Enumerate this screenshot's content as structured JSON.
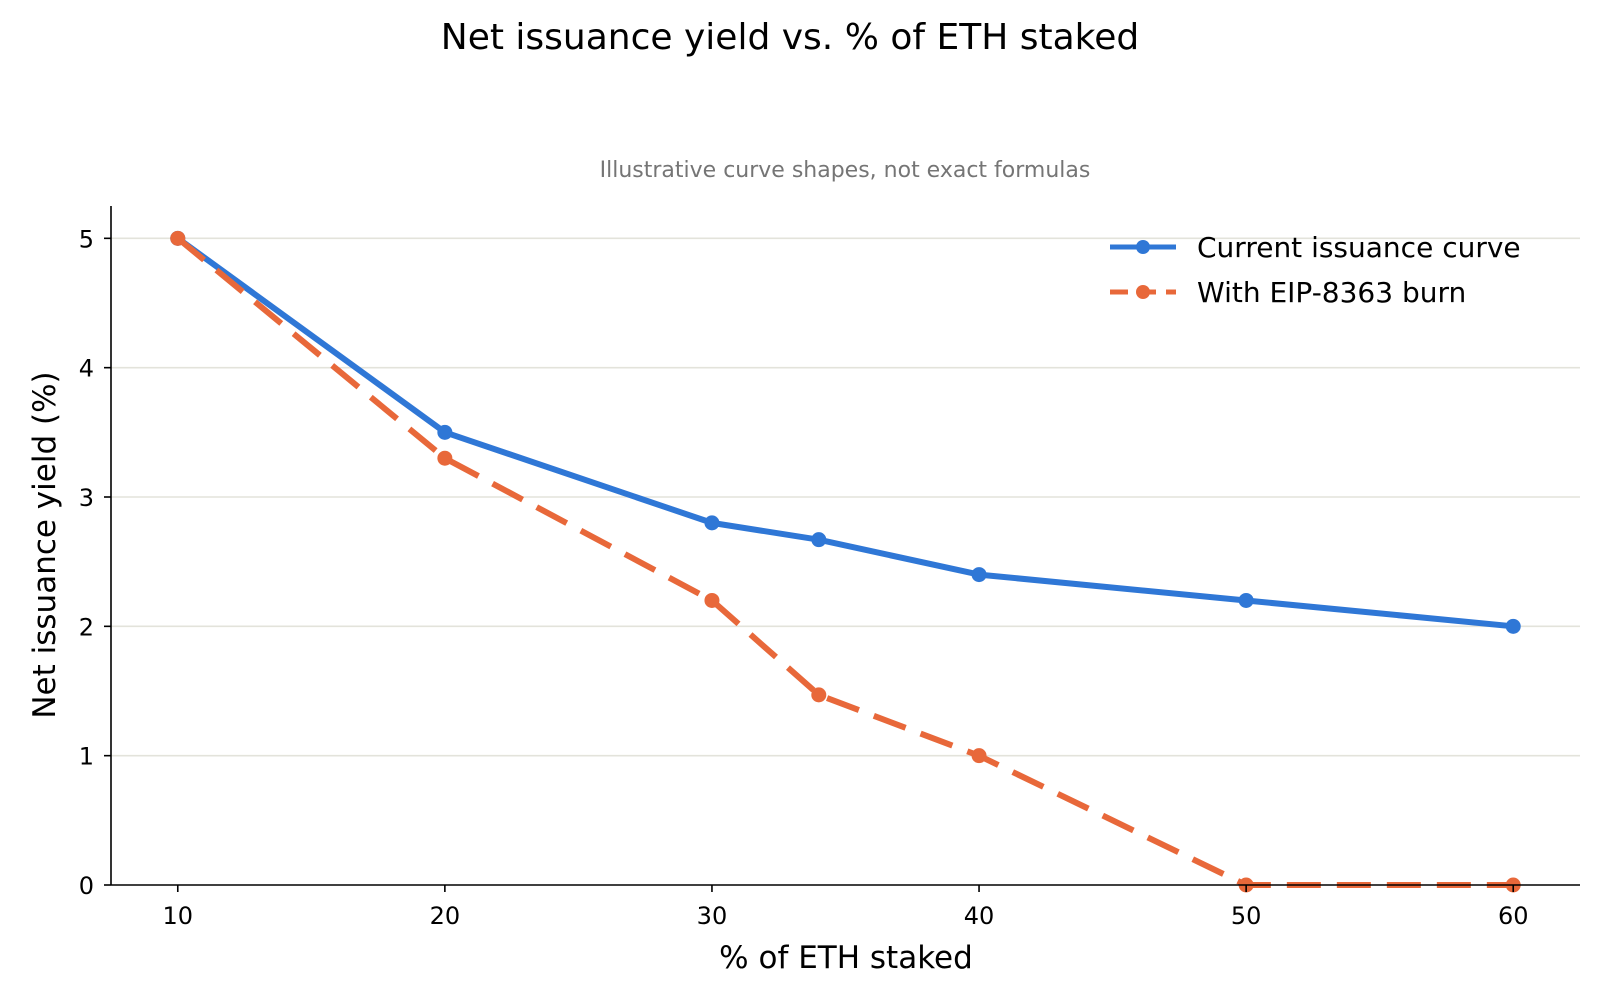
{
  "chart_data": {
    "type": "line",
    "title": "Net issuance yield vs. % of ETH staked",
    "subtitle": "Illustrative curve shapes, not exact formulas",
    "xlabel": "% of ETH staked",
    "ylabel": "Net issuance yield (%)",
    "xlim": [
      7.5,
      62.5
    ],
    "ylim": [
      0,
      5.25
    ],
    "xticks": [
      10,
      20,
      30,
      40,
      50,
      60
    ],
    "yticks": [
      0,
      1,
      2,
      3,
      4,
      5
    ],
    "grid": "horizontal",
    "legend_position": "top-right",
    "series": [
      {
        "name": "Current issuance curve",
        "color": "#2f77d6",
        "line_style": "solid",
        "x": [
          10,
          20,
          30,
          34,
          40,
          50,
          60
        ],
        "y": [
          5.0,
          3.5,
          2.8,
          2.67,
          2.4,
          2.2,
          2.0
        ]
      },
      {
        "name": "With EIP-8363 burn",
        "color": "#e8683a",
        "line_style": "dashed",
        "x": [
          10,
          20,
          30,
          34,
          40,
          50,
          60
        ],
        "y": [
          5.0,
          3.3,
          2.2,
          1.47,
          1.0,
          0.0,
          0.0
        ]
      }
    ]
  }
}
